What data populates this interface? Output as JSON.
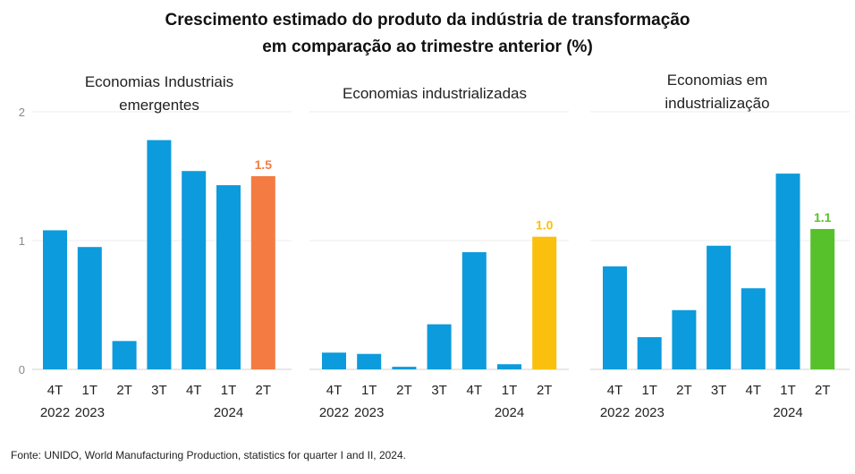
{
  "title_lines": [
    "Crescimento estimado do produto da indústria de transformação",
    "em comparação ao trimestre anterior (%)"
  ],
  "source": "Fonte: UNIDO, World Manufacturing Production, statistics for quarter I and II, 2024.",
  "colors": {
    "default_bar": "#0c9bdc",
    "emerging_highlight": "#f47b42",
    "industrialized_highlight": "#fbc00e",
    "industrializing_highlight": "#57c12b"
  },
  "chart_data": [
    {
      "type": "bar",
      "subtitle_lines": [
        "Economias Industriais",
        "emergentes"
      ],
      "categories": [
        {
          "quarter": "4T",
          "year": "2022"
        },
        {
          "quarter": "1T",
          "year": "2023"
        },
        {
          "quarter": "2T",
          "year": ""
        },
        {
          "quarter": "3T",
          "year": ""
        },
        {
          "quarter": "4T",
          "year": ""
        },
        {
          "quarter": "1T",
          "year": "2024"
        },
        {
          "quarter": "2T",
          "year": ""
        }
      ],
      "values": [
        1.08,
        0.95,
        0.22,
        1.78,
        1.54,
        1.43,
        1.5
      ],
      "highlight_index": 6,
      "highlight_label": "1.5",
      "highlight_color": "#f47b42",
      "ylim": [
        0,
        2
      ],
      "yticks": [
        "0",
        "1",
        "2"
      ]
    },
    {
      "type": "bar",
      "subtitle_lines": [
        "Economias industrializadas"
      ],
      "categories": [
        {
          "quarter": "4T",
          "year": "2022"
        },
        {
          "quarter": "1T",
          "year": "2023"
        },
        {
          "quarter": "2T",
          "year": ""
        },
        {
          "quarter": "3T",
          "year": ""
        },
        {
          "quarter": "4T",
          "year": ""
        },
        {
          "quarter": "1T",
          "year": "2024"
        },
        {
          "quarter": "2T",
          "year": ""
        }
      ],
      "values": [
        0.13,
        0.12,
        0.02,
        0.35,
        0.91,
        0.04,
        1.03
      ],
      "highlight_index": 6,
      "highlight_label": "1.0",
      "highlight_color": "#fbc00e",
      "ylim": [
        0,
        2
      ]
    },
    {
      "type": "bar",
      "subtitle_lines": [
        "Economias em",
        "industrialização"
      ],
      "categories": [
        {
          "quarter": "4T",
          "year": "2022"
        },
        {
          "quarter": "1T",
          "year": "2023"
        },
        {
          "quarter": "2T",
          "year": ""
        },
        {
          "quarter": "3T",
          "year": ""
        },
        {
          "quarter": "4T",
          "year": ""
        },
        {
          "quarter": "1T",
          "year": "2024"
        },
        {
          "quarter": "2T",
          "year": ""
        }
      ],
      "values": [
        0.8,
        0.25,
        0.46,
        0.96,
        0.63,
        1.52,
        1.09
      ],
      "highlight_index": 6,
      "highlight_label": "1.1",
      "highlight_color": "#57c12b",
      "ylim": [
        0,
        2
      ]
    }
  ]
}
